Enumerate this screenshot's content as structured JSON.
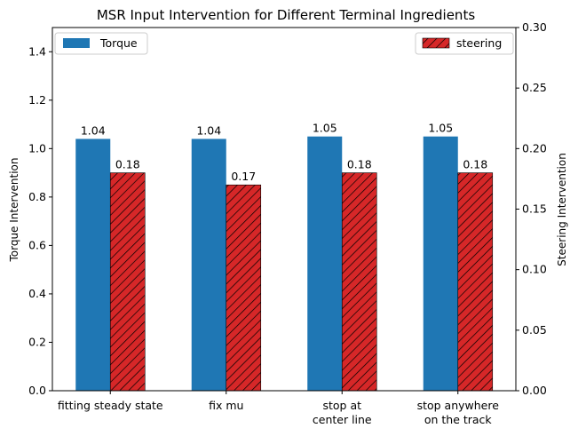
{
  "chart_data": {
    "type": "bar",
    "title": "MSR Input Intervention for Different Terminal Ingredients",
    "categories": [
      "fitting steady state",
      "fix mu",
      "stop at\ncenter line",
      "stop anywhere\non the track"
    ],
    "ylabel": "Torque Intervention",
    "ylabel_right": "Steering Intervention",
    "ylim": [
      0,
      1.5
    ],
    "ylim_right": [
      0,
      0.3
    ],
    "yticks": [
      "0.0",
      "0.2",
      "0.4",
      "0.6",
      "0.8",
      "1.0",
      "1.2",
      "1.4"
    ],
    "yticks_right": [
      "0.00",
      "0.05",
      "0.10",
      "0.15",
      "0.20",
      "0.25",
      "0.30"
    ],
    "series": [
      {
        "name": "Torque",
        "axis": "left",
        "values": [
          1.04,
          1.04,
          1.05,
          1.05
        ],
        "labels": [
          "1.04",
          "1.04",
          "1.05",
          "1.05"
        ],
        "color": "#1f77b4",
        "hatch": false,
        "legend_position": "top-left"
      },
      {
        "name": "steering",
        "axis": "right",
        "values": [
          0.18,
          0.17,
          0.18,
          0.18
        ],
        "labels": [
          "0.18",
          "0.17",
          "0.18",
          "0.18"
        ],
        "color": "#d62728",
        "hatch": true,
        "legend_position": "top-right"
      }
    ],
    "grid": false
  }
}
